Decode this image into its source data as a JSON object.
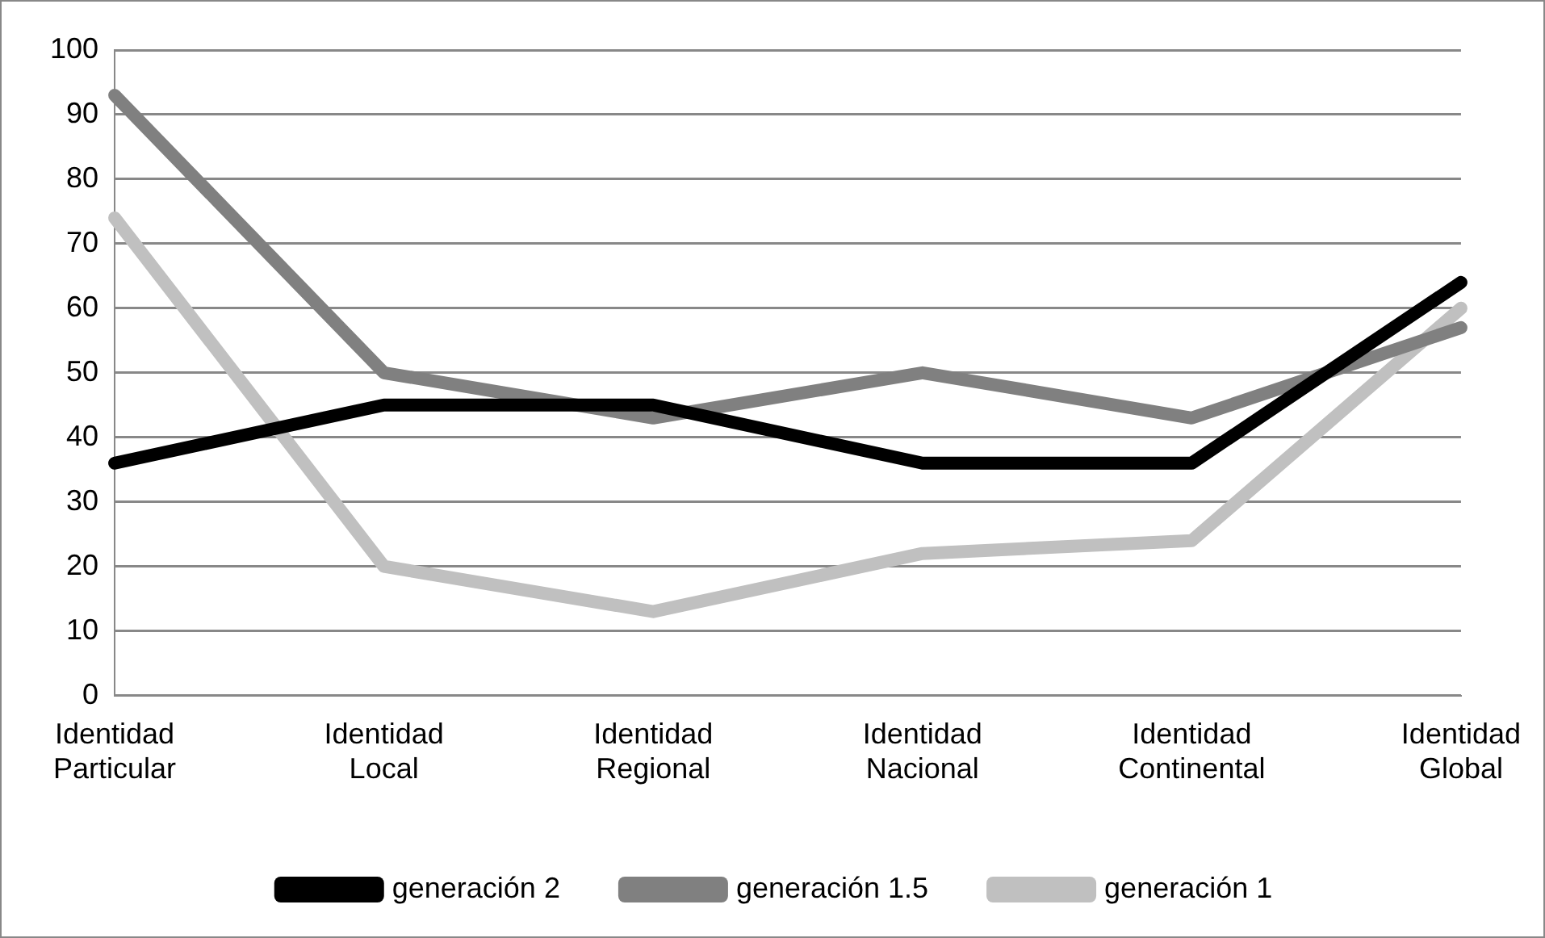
{
  "chart_data": {
    "type": "line",
    "categories": [
      "Identidad\nParticular",
      "Identidad\nLocal",
      "Identidad\nRegional",
      "Identidad\nNacional",
      "Identidad\nContinental",
      "Identidad\nGlobal"
    ],
    "series": [
      {
        "name": "generación 2",
        "color": "#000000",
        "values": [
          36,
          45,
          45,
          36,
          36,
          64
        ]
      },
      {
        "name": "generación 1.5",
        "color": "#808080",
        "values": [
          93,
          50,
          43,
          50,
          43,
          57
        ]
      },
      {
        "name": "generación 1",
        "color": "#c0c0c0",
        "values": [
          74,
          20,
          13,
          22,
          24,
          60
        ]
      }
    ],
    "ylim": [
      0,
      100
    ],
    "yticks": [
      0,
      10,
      20,
      30,
      40,
      50,
      60,
      70,
      80,
      90,
      100
    ],
    "grid": "y",
    "legend": "bottom",
    "marker": "none",
    "line_style": "solid"
  }
}
